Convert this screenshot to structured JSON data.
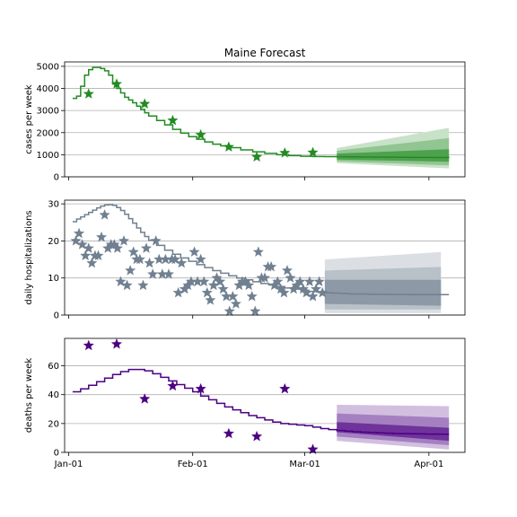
{
  "title": "Maine Forecast",
  "x_tick_labels": [
    "Jan-01",
    "Feb-01",
    "Mar-01",
    "Apr-01"
  ],
  "x_tick_days": [
    0,
    31,
    59,
    90
  ],
  "x_range_days": [
    -1,
    99
  ],
  "colors": {
    "cases": "#228b22",
    "hospitalizations": "#708090",
    "deaths": "#4b0082"
  },
  "chart_data": [
    {
      "type": "line",
      "name": "cases",
      "ylabel": "cases per week",
      "ylim": [
        0,
        5200
      ],
      "yticks": [
        0,
        1000,
        2000,
        3000,
        4000,
        5000
      ],
      "grid": true,
      "model_line": {
        "x": [
          1,
          2,
          3,
          4,
          5,
          6,
          7,
          8,
          9,
          10,
          11,
          12,
          13,
          14,
          15,
          16,
          17,
          18,
          19,
          20,
          22,
          24,
          26,
          28,
          30,
          32,
          34,
          36,
          38,
          40,
          43,
          46,
          49,
          52,
          55,
          58,
          61,
          64,
          67,
          70,
          73,
          76,
          79,
          82,
          85,
          88,
          91,
          94,
          95
        ],
        "y": [
          3550,
          3650,
          4100,
          4600,
          4850,
          4950,
          4950,
          4900,
          4800,
          4600,
          4200,
          4000,
          3800,
          3600,
          3480,
          3350,
          3200,
          3050,
          2900,
          2750,
          2550,
          2350,
          2150,
          1980,
          1820,
          1700,
          1580,
          1480,
          1400,
          1320,
          1220,
          1130,
          1060,
          1000,
          960,
          930,
          920,
          915,
          910,
          905,
          900,
          895,
          890,
          885,
          880,
          878,
          875,
          872,
          870
        ]
      },
      "observed": {
        "x": [
          5,
          12,
          19,
          26,
          33,
          40,
          47,
          54,
          61
        ],
        "y": [
          3750,
          4200,
          3300,
          2550,
          1900,
          1350,
          900,
          1080,
          1100
        ]
      },
      "forecast_bands": {
        "x": [
          67,
          95
        ],
        "outer": {
          "lower_start": 620,
          "lower_end": 380,
          "upper_start": 1300,
          "upper_end": 2220
        },
        "middle": {
          "lower_start": 700,
          "lower_end": 520,
          "upper_start": 1180,
          "upper_end": 1750
        },
        "inner": {
          "lower_start": 780,
          "lower_end": 680,
          "upper_start": 1050,
          "upper_end": 1250
        }
      }
    },
    {
      "type": "line",
      "name": "hospitalizations",
      "ylabel": "daily hospitalizations",
      "ylim": [
        0,
        31
      ],
      "yticks": [
        0,
        10,
        20,
        30
      ],
      "grid": true,
      "model_line": {
        "x": [
          1,
          2,
          3,
          4,
          5,
          6,
          7,
          8,
          9,
          10,
          11,
          12,
          13,
          14,
          15,
          16,
          17,
          18,
          19,
          20,
          22,
          24,
          26,
          28,
          30,
          32,
          34,
          36,
          38,
          40,
          42,
          44,
          46,
          48,
          50,
          52,
          54,
          56,
          58,
          60,
          62,
          64,
          66,
          68,
          70,
          75,
          80,
          85,
          90,
          95
        ],
        "y": [
          25.2,
          25.9,
          26.5,
          27.1,
          27.7,
          28.3,
          28.9,
          29.4,
          29.7,
          29.8,
          29.6,
          29.0,
          28.2,
          27.2,
          26.0,
          24.8,
          23.5,
          22.3,
          21.2,
          20.2,
          18.8,
          17.5,
          16.4,
          15.4,
          14.5,
          13.6,
          12.8,
          12.0,
          11.3,
          10.6,
          10.0,
          9.5,
          9.0,
          8.5,
          8.1,
          7.7,
          7.3,
          7.0,
          6.7,
          6.4,
          6.2,
          6.0,
          5.9,
          5.8,
          5.7,
          5.6,
          5.55,
          5.5,
          5.5,
          5.5
        ]
      },
      "observed": {
        "x": [
          1.8,
          2.6,
          3.4,
          4.2,
          5.0,
          5.8,
          6.6,
          7.4,
          8.2,
          9.0,
          9.8,
          10.6,
          11.4,
          12.2,
          13.0,
          13.8,
          14.6,
          15.4,
          16.2,
          17.0,
          17.8,
          18.6,
          19.4,
          20.2,
          21.0,
          21.8,
          22.6,
          23.4,
          24.2,
          25.0,
          25.8,
          26.6,
          27.4,
          28.2,
          29.0,
          29.8,
          30.6,
          31.4,
          32.2,
          33.0,
          33.8,
          34.6,
          35.4,
          36.2,
          37.0,
          37.8,
          38.6,
          39.4,
          40.2,
          41.0,
          41.8,
          42.6,
          43.4,
          44.2,
          45.0,
          45.8,
          46.6,
          47.4,
          48.2,
          49.0,
          49.8,
          50.6,
          51.4,
          52.2,
          53.0,
          53.8,
          54.6,
          55.4,
          56.2,
          57.0,
          57.8,
          58.6,
          59.4,
          60.2,
          61.0,
          61.8,
          62.6,
          63.4
        ],
        "y": [
          20,
          22,
          19,
          16,
          18,
          14,
          16,
          16,
          21,
          27,
          18,
          19,
          19,
          18,
          9,
          20,
          8,
          12,
          17,
          15,
          15,
          8,
          18,
          14,
          11,
          20,
          15,
          11,
          15,
          11,
          15,
          15,
          6,
          14,
          7,
          8,
          9,
          17,
          9,
          15,
          9,
          6,
          4,
          8,
          10,
          9,
          7,
          5,
          1,
          5,
          3,
          8,
          9,
          9,
          8,
          5,
          1,
          17,
          10,
          10,
          13,
          13,
          8,
          9,
          7,
          6,
          12,
          10,
          7,
          8,
          9,
          7,
          6,
          9,
          5,
          7,
          9,
          6
        ]
      },
      "forecast_bands": {
        "x": [
          64,
          93
        ],
        "outer": {
          "lower_start": 0.5,
          "lower_end": 0.5,
          "upper_start": 15.0,
          "upper_end": 17.0
        },
        "middle": {
          "lower_start": 1.5,
          "lower_end": 1.5,
          "upper_start": 12.0,
          "upper_end": 13.0
        },
        "inner": {
          "lower_start": 3.0,
          "lower_end": 2.5,
          "upper_start": 9.5,
          "upper_end": 9.5
        }
      }
    },
    {
      "type": "line",
      "name": "deaths",
      "ylabel": "deaths per week",
      "ylim": [
        0,
        79
      ],
      "yticks": [
        0,
        20,
        40,
        60
      ],
      "grid": true,
      "model_line": {
        "x": [
          1,
          3,
          5,
          7,
          9,
          11,
          13,
          15,
          17,
          19,
          21,
          23,
          25,
          27,
          29,
          31,
          33,
          35,
          37,
          39,
          41,
          43,
          45,
          47,
          49,
          51,
          53,
          55,
          57,
          59,
          61,
          63,
          65,
          67,
          69,
          71,
          73,
          75,
          77,
          79,
          81,
          83,
          85,
          87,
          89,
          91,
          93,
          95
        ],
        "y": [
          42,
          44,
          46.5,
          49,
          51.5,
          54,
          56,
          57.5,
          57.5,
          56.5,
          54.5,
          52,
          49.5,
          47,
          44.5,
          42,
          39,
          36.5,
          34,
          31.5,
          29.5,
          27.5,
          25.5,
          24,
          22.5,
          21,
          20,
          19.5,
          19,
          18.5,
          17.5,
          16.5,
          15.8,
          15.2,
          14.7,
          14.3,
          14,
          13.8,
          13.5,
          13.3,
          13.1,
          13,
          12.9,
          12.8,
          12.7,
          12.7,
          12.6,
          12.6
        ]
      },
      "observed": {
        "x": [
          5,
          12,
          19,
          26,
          33,
          40,
          47,
          54,
          61
        ],
        "y": [
          74,
          75,
          37,
          46,
          44,
          13,
          11,
          44,
          2
        ]
      },
      "forecast_bands": {
        "x": [
          67,
          95
        ],
        "outer": {
          "lower_start": 8,
          "lower_end": 2,
          "upper_start": 33,
          "upper_end": 32
        },
        "middle": {
          "lower_start": 11,
          "lower_end": 5,
          "upper_start": 27,
          "upper_end": 24
        },
        "inner": {
          "lower_start": 14,
          "lower_end": 8,
          "upper_start": 21,
          "upper_end": 17
        }
      }
    }
  ]
}
